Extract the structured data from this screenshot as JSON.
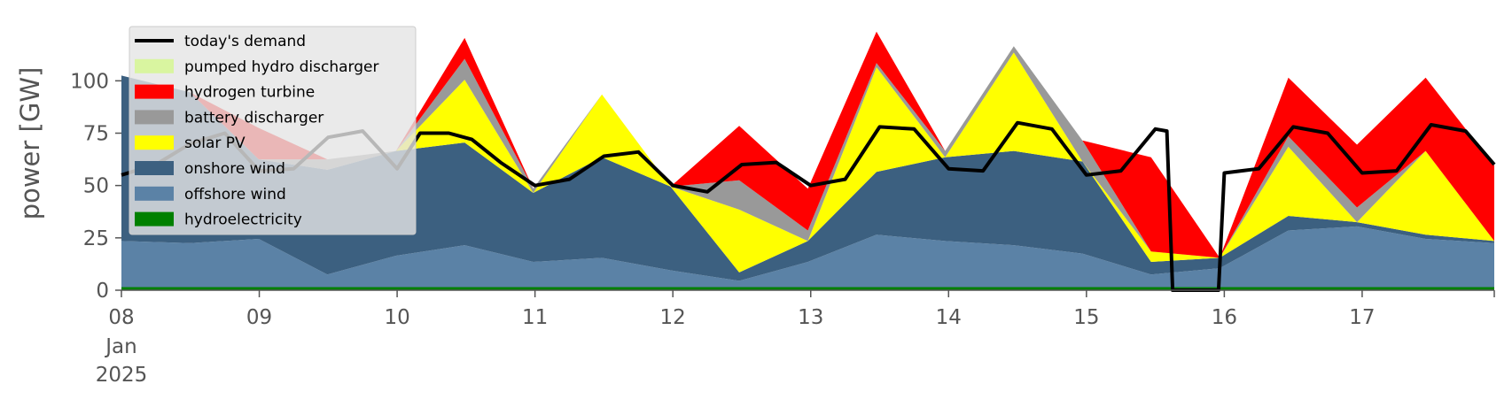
{
  "chart_data": {
    "type": "area",
    "title": "",
    "xlabel": "",
    "ylabel": "power [GW]",
    "ylim": [
      0,
      120
    ],
    "xlim": [
      "2025-01-08 00:00",
      "2025-01-17 23:00"
    ],
    "y_ticks": [
      0,
      25,
      50,
      75,
      100
    ],
    "x_ticks": [
      {
        "t": "2025-01-08",
        "label": "08",
        "sub": [
          "Jan",
          "2025"
        ]
      },
      {
        "t": "2025-01-09",
        "label": "09"
      },
      {
        "t": "2025-01-10",
        "label": "10"
      },
      {
        "t": "2025-01-11",
        "label": "11"
      },
      {
        "t": "2025-01-12",
        "label": "12"
      },
      {
        "t": "2025-01-13",
        "label": "13"
      },
      {
        "t": "2025-01-14",
        "label": "14"
      },
      {
        "t": "2025-01-15",
        "label": "15"
      },
      {
        "t": "2025-01-16",
        "label": "16"
      },
      {
        "t": "2025-01-17",
        "label": "17"
      }
    ],
    "grid": false,
    "legend_position": "top-left",
    "stacked": true,
    "series": [
      {
        "name": "hydroelectricity",
        "color": "#008000",
        "values": [
          1.5,
          1.5,
          1.5,
          1.5,
          1.5,
          1.5,
          1.5,
          1.5,
          1.5,
          1.5,
          1.5,
          1.5,
          1.5,
          1.5,
          1.5,
          1.5,
          1.5,
          1.5,
          1.5,
          1.5,
          1.5
        ]
      },
      {
        "name": "offshore wind",
        "color": "#5b82a6",
        "values": [
          22,
          21,
          23,
          6,
          15,
          20,
          12,
          14,
          8,
          3,
          12,
          25,
          22,
          20,
          16,
          6,
          9,
          27,
          29,
          23,
          21
        ]
      },
      {
        "name": "onshore wind",
        "color": "#3c6080",
        "values": [
          79,
          72,
          38,
          50,
          50,
          49,
          33,
          48,
          40,
          4,
          10,
          30,
          40,
          45,
          44,
          6,
          5,
          7,
          2,
          2,
          1
        ]
      },
      {
        "name": "solar PV",
        "color": "#ffff00",
        "values": [
          0,
          0,
          0,
          0,
          0,
          30,
          0,
          30,
          0,
          30,
          0,
          50,
          0,
          47,
          0,
          5,
          0,
          33,
          0,
          40,
          0
        ]
      },
      {
        "name": "battery discharger",
        "color": "#999999",
        "values": [
          0,
          0,
          0,
          5,
          0,
          10,
          2,
          0,
          0,
          14,
          5,
          2,
          3,
          3,
          10,
          0,
          0,
          5,
          7,
          0,
          0
        ]
      },
      {
        "name": "hydrogen turbine",
        "color": "#ff0000",
        "values": [
          0,
          0,
          15,
          0,
          0,
          10,
          0,
          0,
          0,
          26,
          20,
          15,
          0,
          0,
          0,
          45,
          0,
          28,
          30,
          35,
          36
        ]
      },
      {
        "name": "pumped hydro discharger",
        "color": "#d9f5a0",
        "values": [
          0,
          0,
          0,
          0,
          0,
          0,
          0,
          0,
          0,
          0,
          0,
          0,
          0,
          0,
          0,
          0,
          0,
          0,
          0,
          0,
          0
        ]
      }
    ],
    "demand": {
      "name": "today's demand",
      "color": "#000000",
      "t": [
        "2025-01-08 00:00",
        "2025-01-08 06:00",
        "2025-01-08 12:00",
        "2025-01-08 18:00",
        "2025-01-09 00:00",
        "2025-01-09 06:00",
        "2025-01-09 12:00",
        "2025-01-09 18:00",
        "2025-01-10 00:00",
        "2025-01-10 04:00",
        "2025-01-10 09:00",
        "2025-01-10 13:00",
        "2025-01-10 18:00",
        "2025-01-11 00:00",
        "2025-01-11 06:00",
        "2025-01-11 12:00",
        "2025-01-11 18:00",
        "2025-01-12 00:00",
        "2025-01-12 06:00",
        "2025-01-12 12:00",
        "2025-01-12 18:00",
        "2025-01-13 00:00",
        "2025-01-13 06:00",
        "2025-01-13 12:00",
        "2025-01-13 18:00",
        "2025-01-14 00:00",
        "2025-01-14 06:00",
        "2025-01-14 12:00",
        "2025-01-14 18:00",
        "2025-01-15 00:00",
        "2025-01-15 06:00",
        "2025-01-15 12:00",
        "2025-01-15 14:00",
        "2025-01-15 15:00",
        "2025-01-15 23:00",
        "2025-01-16 00:00",
        "2025-01-16 06:00",
        "2025-01-16 12:00",
        "2025-01-16 18:00",
        "2025-01-17 00:00",
        "2025-01-17 06:00",
        "2025-01-17 12:00",
        "2025-01-17 18:00",
        "2025-01-17 23:00"
      ],
      "values": [
        55,
        60,
        70,
        75,
        57,
        58,
        73,
        76,
        58,
        75,
        75,
        72,
        61,
        50,
        53,
        64,
        66,
        50,
        47,
        60,
        61,
        50,
        53,
        78,
        77,
        58,
        57,
        80,
        77,
        55,
        57,
        77,
        76,
        0,
        0,
        56,
        58,
        78,
        75,
        56,
        57,
        79,
        76,
        60
      ]
    }
  }
}
